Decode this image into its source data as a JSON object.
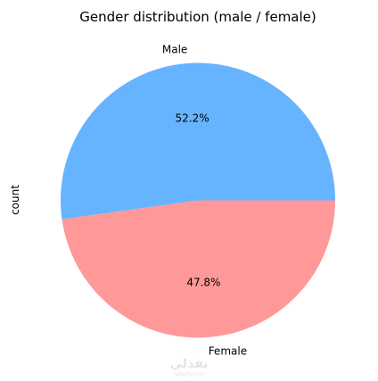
{
  "chart_data": {
    "type": "pie",
    "title": "Gender distribution (male / female)",
    "ylabel": "count",
    "categories": [
      "Male",
      "Female"
    ],
    "values": [
      52.2,
      47.8
    ],
    "value_labels": [
      "52.2%",
      "47.8%"
    ],
    "colors": [
      "#66b3ff",
      "#ff9999"
    ],
    "start_angle_deg": 0,
    "direction": "counterclockwise",
    "legend": "none"
  },
  "watermark": {
    "text": "نفذلي",
    "subtext": "nafezly.com",
    "color": "#cfcfcf"
  }
}
